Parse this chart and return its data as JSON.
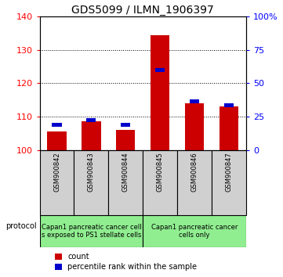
{
  "title": "GDS5099 / ILMN_1906397",
  "samples": [
    "GSM900842",
    "GSM900843",
    "GSM900844",
    "GSM900845",
    "GSM900846",
    "GSM900847"
  ],
  "red_values": [
    105.5,
    108.5,
    106.0,
    134.5,
    114.0,
    113.0
  ],
  "blue_values": [
    107.5,
    109.0,
    107.5,
    124.0,
    114.5,
    113.5
  ],
  "ylim": [
    100,
    140
  ],
  "yticks": [
    100,
    110,
    120,
    130,
    140
  ],
  "right_yticks": [
    0,
    25,
    50,
    75,
    100
  ],
  "group1_label": "Capan1 pancreatic cancer cell\ns exposed to PS1 stellate cells",
  "group2_label": "Capan1 pancreatic cancer\ncells only",
  "group1_indices": [
    0,
    1,
    2
  ],
  "group2_indices": [
    3,
    4,
    5
  ],
  "sample_bg_color": "#d0d0d0",
  "group_bg_color": "#90ee90",
  "red_color": "#cc0000",
  "blue_color": "#0000cc",
  "legend_red": "count",
  "legend_blue": "percentile rank within the sample",
  "protocol_label": "protocol",
  "title_fontsize": 10,
  "tick_fontsize": 8,
  "sample_fontsize": 6,
  "group_fontsize": 6,
  "legend_fontsize": 7
}
